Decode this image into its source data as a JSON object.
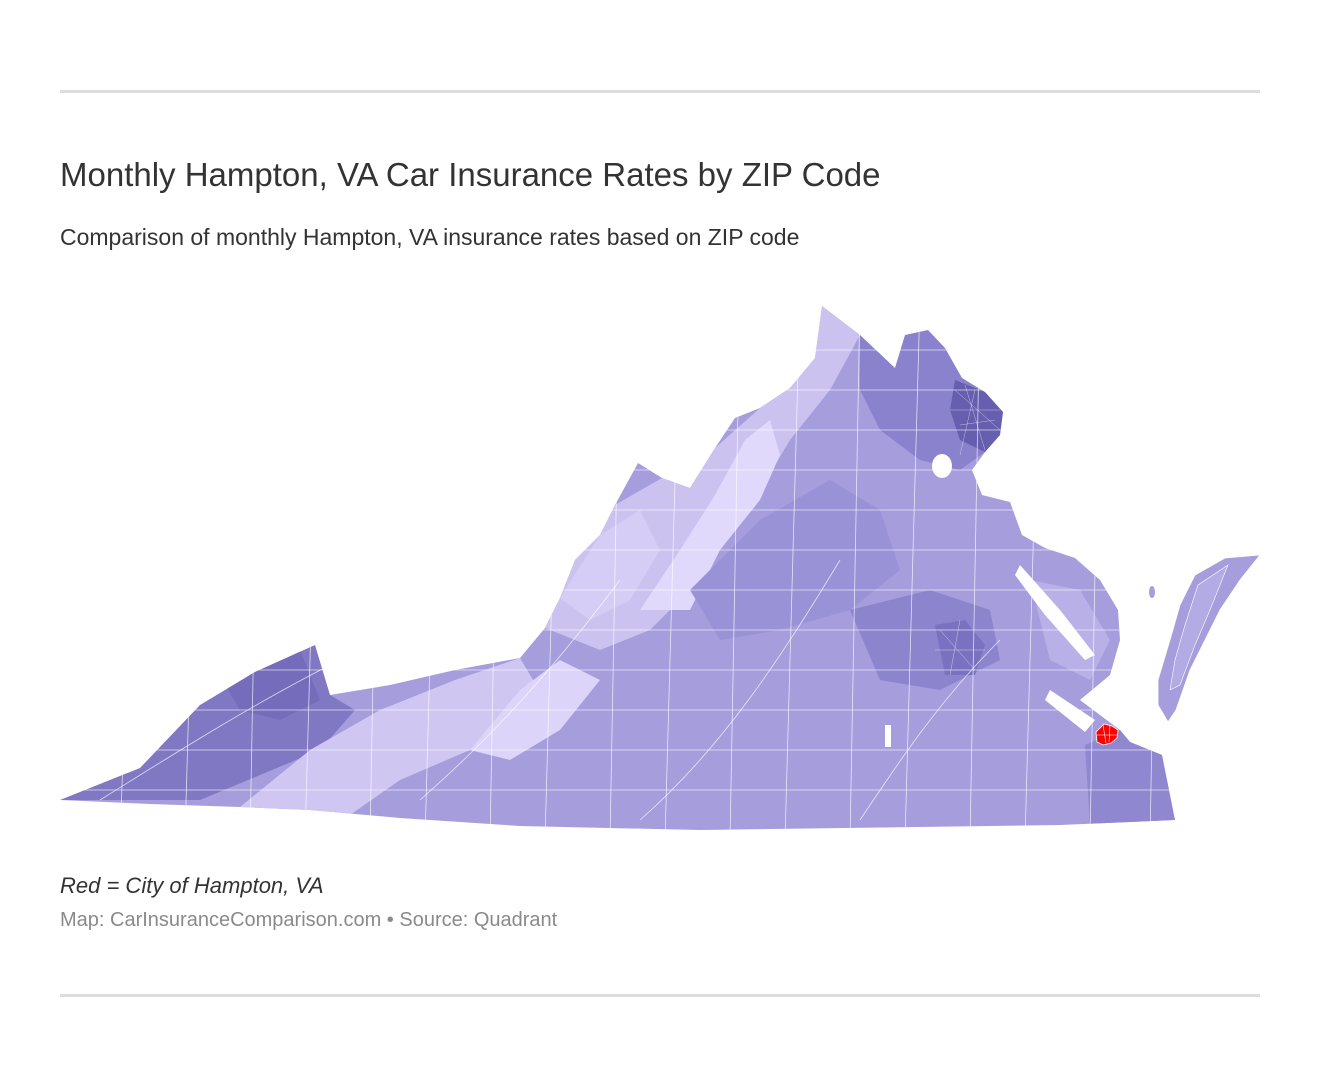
{
  "header": {
    "title": "Monthly Hampton, VA Car Insurance Rates by ZIP Code",
    "subtitle": "Comparison of monthly Hampton, VA insurance rates based on ZIP code"
  },
  "map": {
    "region": "Virginia",
    "highlight_city": "Hampton, VA",
    "highlight_color": "#ff0000",
    "color_scale": [
      "#e2dbfb",
      "#cfc6f2",
      "#b9b0e6",
      "#a59ddc",
      "#948cd1",
      "#8078c3",
      "#6c63b3"
    ],
    "water_color": "#ffffff"
  },
  "footer": {
    "legend": "Red = City of Hampton, VA",
    "source": "Map: CarInsuranceComparison.com • Source: Quadrant"
  }
}
